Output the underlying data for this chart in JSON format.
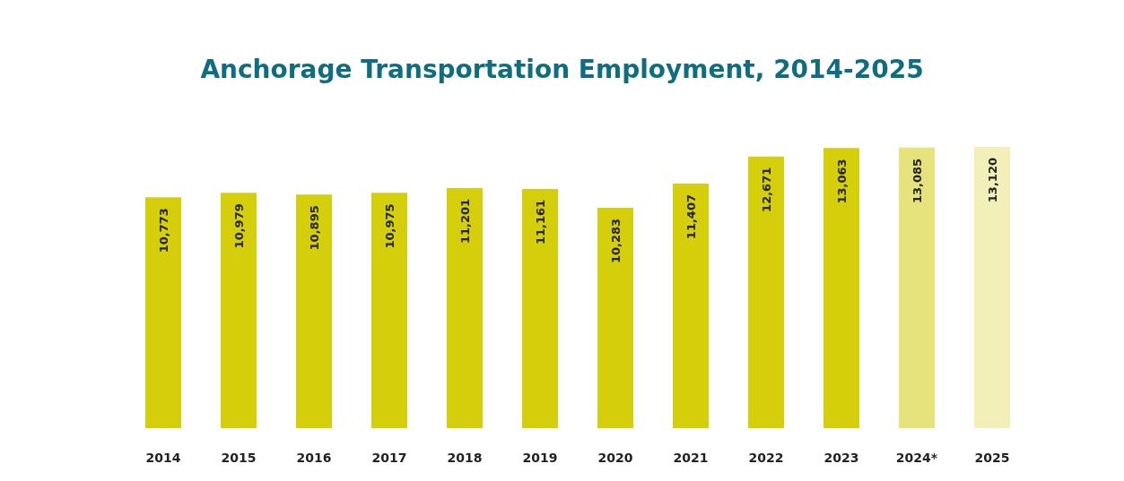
{
  "chart_data": {
    "type": "bar",
    "title": "Anchorage Transportation Employment, 2014-2025",
    "categories": [
      "2014",
      "2015",
      "2016",
      "2017",
      "2018",
      "2019",
      "2020",
      "2021",
      "2022",
      "2023",
      "2024*",
      "2025"
    ],
    "values": [
      10773,
      10979,
      10895,
      10975,
      11201,
      11161,
      10283,
      11407,
      12671,
      13063,
      13085,
      13120
    ],
    "value_labels": [
      "10,773",
      "10,979",
      "10,895",
      "10,975",
      "11,201",
      "11,161",
      "10,283",
      "11,407",
      "12,671",
      "13,063",
      "13,085",
      "13,120"
    ],
    "colors": [
      "#d4cf0a",
      "#d4cf0a",
      "#d4cf0a",
      "#d4cf0a",
      "#d4cf0a",
      "#d4cf0a",
      "#d4cf0a",
      "#d4cf0a",
      "#d4cf0a",
      "#d4cf0a",
      "#e6e37c",
      "#f2f0b8"
    ]
  }
}
